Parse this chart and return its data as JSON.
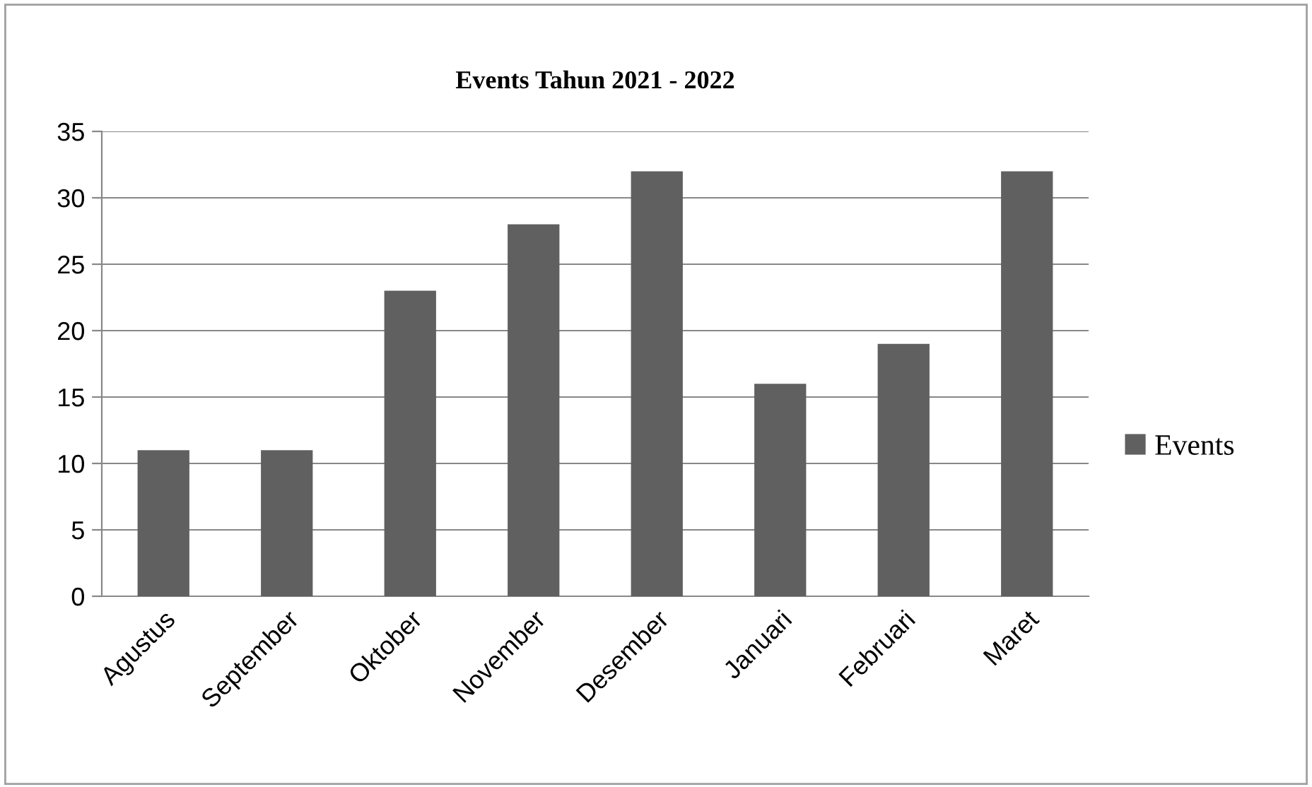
{
  "chart_data": {
    "type": "bar",
    "title": "Events Tahun 2021 - 2022",
    "categories": [
      "Agustus",
      "September",
      "Oktober",
      "November",
      "Desember",
      "Januari",
      "Februari",
      "Maret"
    ],
    "series": [
      {
        "name": "Events",
        "color": "#606060",
        "values": [
          11,
          11,
          23,
          28,
          32,
          16,
          19,
          32
        ]
      }
    ],
    "ylim": [
      0,
      35
    ],
    "yticks": [
      0,
      5,
      10,
      15,
      20,
      25,
      30,
      35
    ],
    "grid": "y",
    "legend": "right"
  }
}
